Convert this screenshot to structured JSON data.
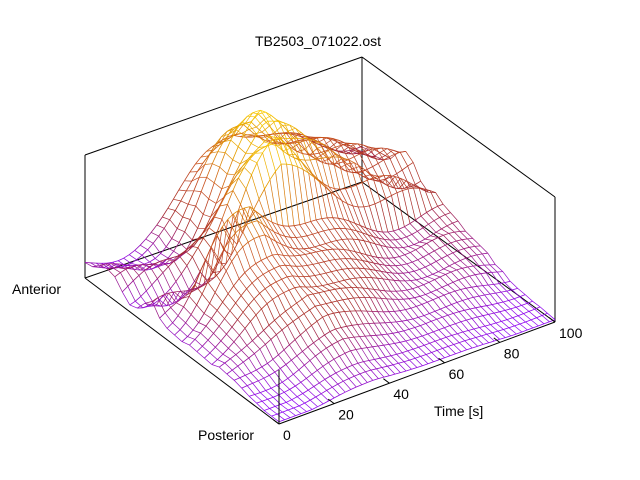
{
  "chart_data": {
    "type": "surface",
    "title": "TB2503_071022.ost",
    "xlabel": "Time [s]",
    "ylabel_start": "Posterior",
    "ylabel_end": "Anterior",
    "x_ticks": [
      "0",
      "20",
      "40",
      "60",
      "80",
      "100"
    ],
    "xlim": [
      0,
      100
    ],
    "grid": false,
    "colormap": [
      "#8b00ff",
      "#a52a2a",
      "#c8501e",
      "#e6a000",
      "#ffd700"
    ],
    "mesh_color_low": "#8b00ff",
    "mesh_color_high": "#ffd700",
    "x_step": 2,
    "channel_count": 27,
    "channel_peak_times": [
      35,
      35,
      35,
      34,
      34,
      33,
      33,
      32,
      32,
      31,
      31,
      31,
      31,
      30,
      30,
      30,
      44,
      45,
      47,
      48,
      49,
      50,
      51,
      52,
      52,
      53,
      53
    ],
    "channel_peak_levels": [
      0.06,
      0.08,
      0.1,
      0.14,
      0.18,
      0.22,
      0.28,
      0.34,
      0.38,
      0.42,
      0.46,
      0.5,
      0.54,
      0.6,
      0.66,
      0.72,
      0.84,
      0.94,
      0.98,
      1.0,
      0.98,
      0.94,
      0.9,
      0.86,
      0.8,
      0.74,
      0.68
    ]
  }
}
